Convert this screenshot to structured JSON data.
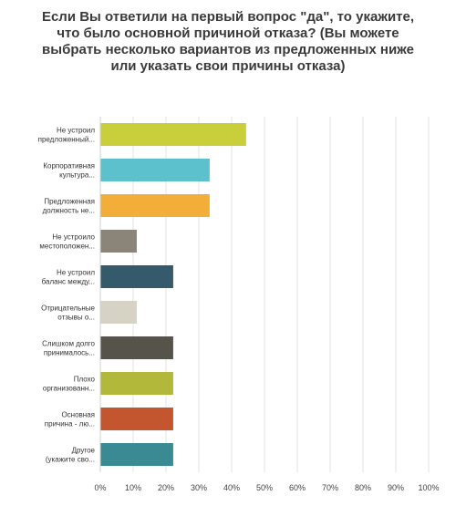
{
  "chart_data": {
    "type": "bar",
    "orientation": "horizontal",
    "title": "Если Вы ответили на первый вопрос \"да\", то укажите, что было основной причиной отказа? (Вы можете выбрать несколько вариантов из предложенных ниже или указать свои причины отказа)",
    "xlabel": "",
    "ylabel": "",
    "xlim": [
      0,
      100
    ],
    "grid": true,
    "legend": "none",
    "x_ticks": [
      "0%",
      "10%",
      "20%",
      "30%",
      "40%",
      "50%",
      "60%",
      "70%",
      "80%",
      "90%",
      "100%"
    ],
    "categories": [
      [
        "Не устроил",
        "предложенный..."
      ],
      [
        "Корпоративная",
        "культура..."
      ],
      [
        "Предложенная",
        "должность не..."
      ],
      [
        "Не устроило",
        "местоположен..."
      ],
      [
        "Не устроил",
        "баланс между..."
      ],
      [
        "Отрицательные",
        "отзывы о..."
      ],
      [
        "Слишком долго",
        "принималось..."
      ],
      [
        "Плохо",
        "организованн..."
      ],
      [
        "Основная",
        "причина - лю..."
      ],
      [
        "Другое",
        "(укажите сво..."
      ]
    ],
    "values": [
      44.4,
      33.3,
      33.3,
      11.1,
      22.2,
      11.1,
      22.2,
      22.2,
      22.2,
      22.2
    ],
    "colors": [
      "#c9cf3a",
      "#5cc1cc",
      "#f2ae38",
      "#8a8578",
      "#345a6b",
      "#d6d2c4",
      "#56534a",
      "#b2b83a",
      "#c4562f",
      "#3a8a94"
    ]
  }
}
